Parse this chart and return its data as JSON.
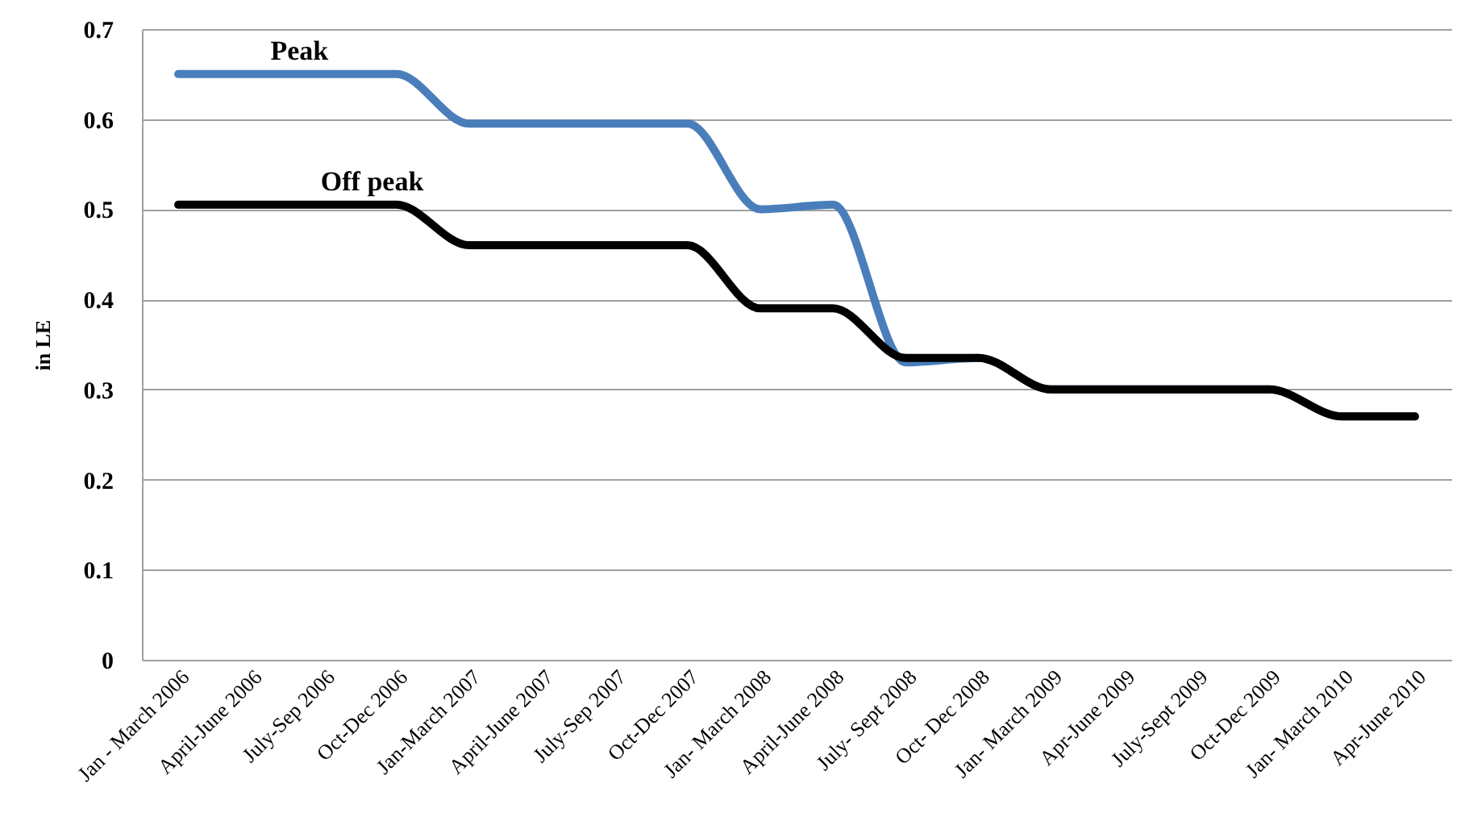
{
  "chart_data": {
    "type": "line",
    "ylabel": "in LE",
    "categories": [
      "Jan - March 2006",
      "April-June 2006",
      "July-Sep 2006",
      "Oct-Dec 2006",
      "Jan-March 2007",
      "April-June 2007",
      "July-Sep 2007",
      "Oct-Dec 2007",
      "Jan- March 2008",
      "April-June 2008",
      "July- Sept 2008",
      "Oct- Dec 2008",
      "Jan- March 2009",
      "Apr-June 2009",
      "July-Sept 2009",
      "Oct-Dec 2009",
      "Jan- March 2010",
      "Apr-June 2010"
    ],
    "series": [
      {
        "name": "Peak",
        "color": "#4a7ebb",
        "values": [
          0.65,
          0.65,
          0.65,
          0.65,
          0.595,
          0.595,
          0.595,
          0.595,
          0.5,
          0.505,
          0.33,
          0.335,
          0.3,
          0.3,
          0.3,
          0.3,
          0.27,
          0.27
        ]
      },
      {
        "name": "Off peak",
        "color": "#000000",
        "values": [
          0.505,
          0.505,
          0.505,
          0.505,
          0.46,
          0.46,
          0.46,
          0.46,
          0.39,
          0.39,
          0.335,
          0.335,
          0.3,
          0.3,
          0.3,
          0.3,
          0.27,
          0.27
        ]
      }
    ],
    "ylim": [
      0,
      0.7
    ],
    "yticks": [
      0,
      0.1,
      0.2,
      0.3,
      0.4,
      0.5,
      0.6,
      0.7
    ],
    "grid": "y",
    "legend": false,
    "marker": "none",
    "line_style": "solid"
  }
}
